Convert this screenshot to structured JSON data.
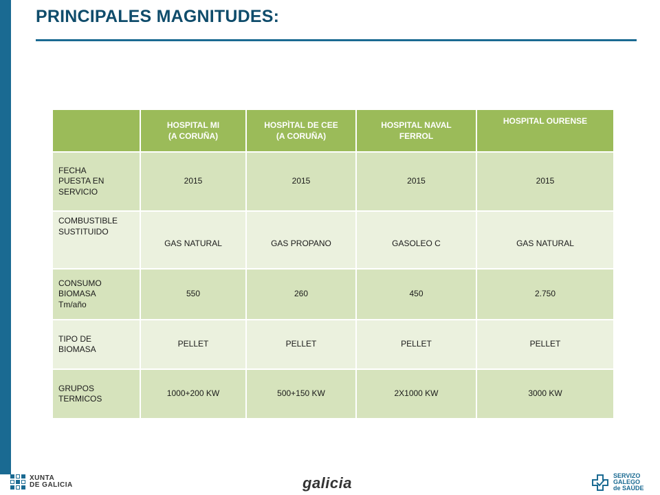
{
  "title": "PRINCIPALES MAGNITUDES:",
  "table": {
    "headers": [
      [
        "HOSPITAL MI",
        "(A CORUÑA)"
      ],
      [
        "HOSPÌTAL DE CEE",
        "(A CORUÑA)"
      ],
      [
        "HOSPITAL NAVAL",
        "FERROL"
      ],
      [
        "HOSPITAL OURENSE",
        ""
      ]
    ],
    "rows": [
      {
        "label": [
          "FECHA",
          "PUESTA EN",
          "SERVICIO"
        ],
        "values": [
          "2015",
          "2015",
          "2015",
          "2015"
        ]
      },
      {
        "label": [
          "COMBUSTIBLE",
          "SUSTITUIDO"
        ],
        "values": [
          "GAS NATURAL",
          "GAS PROPANO",
          "GASOLEO C",
          "GAS NATURAL"
        ]
      },
      {
        "label": [
          "CONSUMO",
          "BIOMASA",
          "Tm/año"
        ],
        "values": [
          "550",
          "260",
          "450",
          "2.750"
        ]
      },
      {
        "label": [
          "TIPO DE",
          "BIOMASA"
        ],
        "values": [
          "PELLET",
          "PELLET",
          "PELLET",
          "PELLET"
        ]
      },
      {
        "label": [
          "GRUPOS",
          "TERMICOS"
        ],
        "values": [
          "1000+200 KW",
          "500+150 KW",
          "2X1000 KW",
          "3000 KW"
        ]
      }
    ]
  },
  "footer": {
    "xunta": [
      "XUNTA",
      "DE GALICIA"
    ],
    "galicia": "galicia",
    "sergas": [
      "SERVIZO",
      "GALEGO",
      "de SAÚDE"
    ]
  },
  "colors": {
    "accent": "#1a6a92",
    "header_green": "#9bbb59",
    "row_dark": "#d6e3bc",
    "row_light": "#ebf1de"
  }
}
